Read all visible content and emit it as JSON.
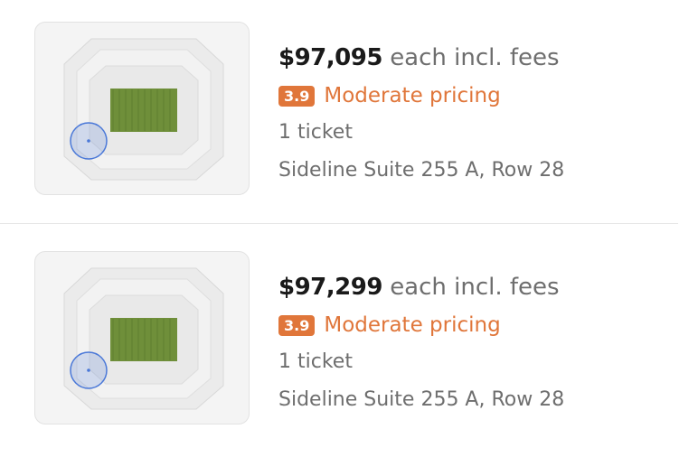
{
  "listings": [
    {
      "price": "$97,095",
      "price_suffix": "each incl. fees",
      "rating": "3.9",
      "rating_label": "Moderate pricing",
      "quantity": "1 ticket",
      "seat": "Sideline Suite 255 A, Row 28"
    },
    {
      "price": "$97,299",
      "price_suffix": "each incl. fees",
      "rating": "3.9",
      "rating_label": "Moderate pricing",
      "quantity": "1 ticket",
      "seat": "Sideline Suite 255 A, Row 28"
    }
  ],
  "colors": {
    "rating": "#e0763a",
    "field": "#6f8f3a",
    "highlight": "#4a78d8"
  }
}
